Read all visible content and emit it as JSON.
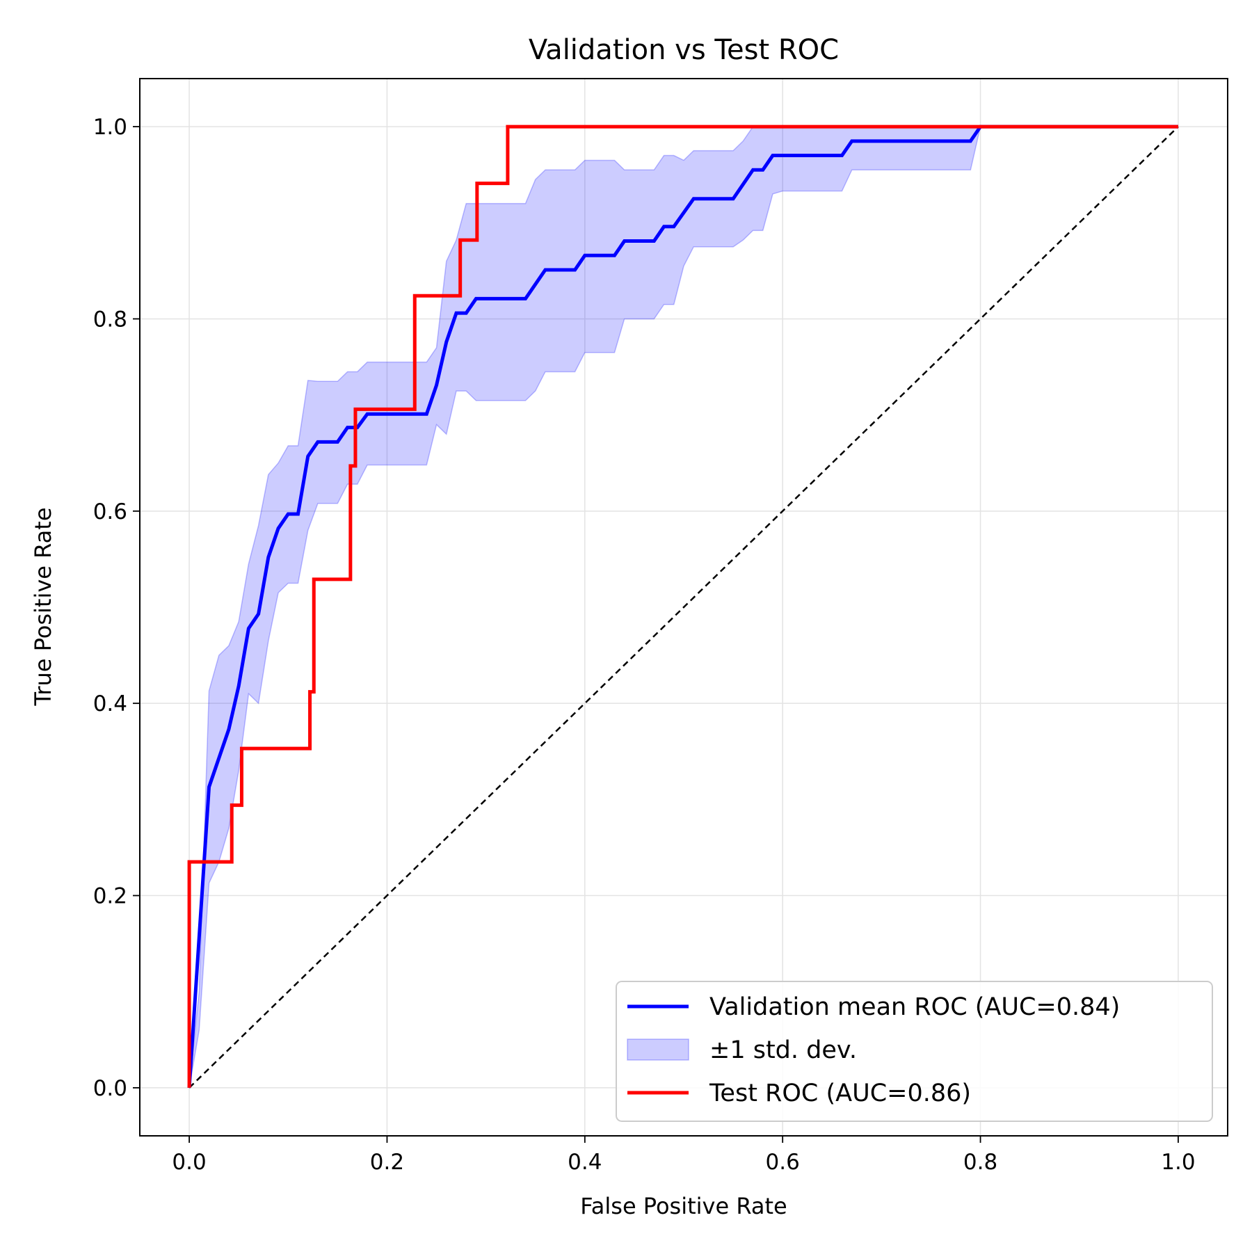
{
  "chart_data": {
    "type": "line",
    "title": "Validation vs Test ROC",
    "xlabel": "False Positive Rate",
    "ylabel": "True Positive Rate",
    "xlim": [
      -0.05,
      1.05
    ],
    "ylim": [
      -0.05,
      1.05
    ],
    "xticks": [
      0.0,
      0.2,
      0.4,
      0.6,
      0.8,
      1.0
    ],
    "yticks": [
      0.0,
      0.2,
      0.4,
      0.6,
      0.8,
      1.0
    ],
    "xtick_labels": [
      "0.0",
      "0.2",
      "0.4",
      "0.6",
      "0.8",
      "1.0"
    ],
    "ytick_labels": [
      "0.0",
      "0.2",
      "0.4",
      "0.6",
      "0.8",
      "1.0"
    ],
    "grid": true,
    "legend_position": "bottom-right",
    "series": [
      {
        "name": "Validation mean ROC (AUC=0.84)",
        "kind": "line",
        "color": "#0000ff",
        "points": [
          [
            0,
            0
          ],
          [
            0.02,
            0.313
          ],
          [
            0.04,
            0.373
          ],
          [
            0.05,
            0.418
          ],
          [
            0.06,
            0.478
          ],
          [
            0.07,
            0.493
          ],
          [
            0.08,
            0.552
          ],
          [
            0.09,
            0.582
          ],
          [
            0.1,
            0.597
          ],
          [
            0.11,
            0.597
          ],
          [
            0.12,
            0.657
          ],
          [
            0.13,
            0.672
          ],
          [
            0.15,
            0.672
          ],
          [
            0.16,
            0.687
          ],
          [
            0.17,
            0.687
          ],
          [
            0.18,
            0.701
          ],
          [
            0.24,
            0.701
          ],
          [
            0.25,
            0.731
          ],
          [
            0.26,
            0.776
          ],
          [
            0.27,
            0.806
          ],
          [
            0.28,
            0.806
          ],
          [
            0.29,
            0.821
          ],
          [
            0.34,
            0.821
          ],
          [
            0.36,
            0.851
          ],
          [
            0.39,
            0.851
          ],
          [
            0.4,
            0.866
          ],
          [
            0.43,
            0.866
          ],
          [
            0.44,
            0.881
          ],
          [
            0.47,
            0.881
          ],
          [
            0.48,
            0.896
          ],
          [
            0.49,
            0.896
          ],
          [
            0.51,
            0.925
          ],
          [
            0.55,
            0.925
          ],
          [
            0.57,
            0.955
          ],
          [
            0.58,
            0.955
          ],
          [
            0.59,
            0.97
          ],
          [
            0.66,
            0.97
          ],
          [
            0.67,
            0.985
          ],
          [
            0.79,
            0.985
          ],
          [
            0.8,
            1.0
          ],
          [
            1.0,
            1.0
          ]
        ]
      },
      {
        "name": "±1 std. dev.",
        "kind": "band",
        "color": "#0000ff",
        "opacity": 0.2,
        "x": [
          0,
          0.01,
          0.02,
          0.03,
          0.04,
          0.05,
          0.06,
          0.07,
          0.08,
          0.09,
          0.1,
          0.11,
          0.12,
          0.13,
          0.14,
          0.15,
          0.16,
          0.17,
          0.18,
          0.19,
          0.2,
          0.24,
          0.25,
          0.26,
          0.27,
          0.28,
          0.29,
          0.3,
          0.34,
          0.35,
          0.36,
          0.39,
          0.4,
          0.43,
          0.44,
          0.47,
          0.48,
          0.49,
          0.5,
          0.51,
          0.55,
          0.56,
          0.57,
          0.58,
          0.59,
          0.6,
          0.66,
          0.67,
          0.79,
          0.8,
          1.0
        ],
        "upper": [
          0,
          0.1,
          0.413,
          0.45,
          0.46,
          0.485,
          0.545,
          0.585,
          0.638,
          0.65,
          0.668,
          0.668,
          0.736,
          0.735,
          0.735,
          0.735,
          0.745,
          0.745,
          0.755,
          0.755,
          0.755,
          0.755,
          0.77,
          0.86,
          0.882,
          0.92,
          0.92,
          0.92,
          0.92,
          0.945,
          0.955,
          0.955,
          0.965,
          0.965,
          0.955,
          0.955,
          0.97,
          0.97,
          0.965,
          0.975,
          0.975,
          0.985,
          1.0,
          1.0,
          1.0,
          1.0,
          1.0,
          1.0,
          1.0,
          1.0,
          1.0
        ],
        "lower": [
          0,
          0.06,
          0.213,
          0.235,
          0.27,
          0.33,
          0.41,
          0.4,
          0.465,
          0.515,
          0.525,
          0.525,
          0.58,
          0.608,
          0.608,
          0.608,
          0.628,
          0.628,
          0.648,
          0.648,
          0.648,
          0.648,
          0.69,
          0.68,
          0.725,
          0.725,
          0.715,
          0.715,
          0.715,
          0.725,
          0.745,
          0.745,
          0.765,
          0.765,
          0.8,
          0.8,
          0.815,
          0.815,
          0.855,
          0.875,
          0.875,
          0.882,
          0.892,
          0.892,
          0.93,
          0.933,
          0.933,
          0.955,
          0.955,
          1.0,
          1.0
        ]
      },
      {
        "name": "Test ROC (AUC=0.86)",
        "kind": "line",
        "color": "#ff0000",
        "points": [
          [
            0,
            0
          ],
          [
            0,
            0.235
          ],
          [
            0.043,
            0.235
          ],
          [
            0.043,
            0.294
          ],
          [
            0.053,
            0.294
          ],
          [
            0.053,
            0.353
          ],
          [
            0.122,
            0.353
          ],
          [
            0.122,
            0.412
          ],
          [
            0.126,
            0.412
          ],
          [
            0.126,
            0.529
          ],
          [
            0.163,
            0.529
          ],
          [
            0.163,
            0.647
          ],
          [
            0.168,
            0.647
          ],
          [
            0.168,
            0.706
          ],
          [
            0.228,
            0.706
          ],
          [
            0.228,
            0.824
          ],
          [
            0.274,
            0.824
          ],
          [
            0.274,
            0.882
          ],
          [
            0.291,
            0.882
          ],
          [
            0.291,
            0.941
          ],
          [
            0.322,
            0.941
          ],
          [
            0.322,
            1.0
          ],
          [
            1.0,
            1.0
          ]
        ]
      },
      {
        "name": "",
        "kind": "reference",
        "color": "#000000",
        "points": [
          [
            0,
            0
          ],
          [
            1,
            1
          ]
        ]
      }
    ],
    "legend": [
      {
        "label": "Validation mean ROC (AUC=0.84)",
        "swatch": "line",
        "color": "#0000ff"
      },
      {
        "label": "±1 std. dev.",
        "swatch": "patch",
        "color": "#0000ff"
      },
      {
        "label": "Test ROC (AUC=0.86)",
        "swatch": "line",
        "color": "#ff0000"
      }
    ]
  }
}
